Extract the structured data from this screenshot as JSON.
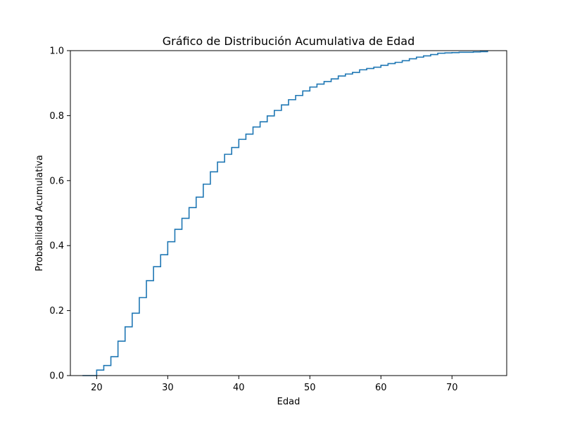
{
  "chart_data": {
    "type": "line",
    "step": true,
    "title": "Gráfico de Distribución Acumulativa de Edad",
    "xlabel": "Edad",
    "ylabel": "Probabilidad Acumulativa",
    "xlim": [
      16.3,
      77.7
    ],
    "ylim": [
      0,
      1
    ],
    "x_ticks": [
      20,
      30,
      40,
      50,
      60,
      70
    ],
    "y_ticks": [
      0.0,
      0.2,
      0.4,
      0.6,
      0.8,
      1.0
    ],
    "x_tick_labels": [
      "20",
      "30",
      "40",
      "50",
      "60",
      "70"
    ],
    "y_tick_labels": [
      "0.0",
      "0.2",
      "0.4",
      "0.6",
      "0.8",
      "1.0"
    ],
    "grid": false,
    "line_color": "#1f77b4",
    "series": [
      {
        "x": [
          19,
          20,
          21,
          22,
          23,
          24,
          25,
          26,
          27,
          28,
          29,
          30,
          31,
          32,
          33,
          34,
          35,
          36,
          37,
          38,
          39,
          40,
          41,
          42,
          43,
          44,
          45,
          46,
          47,
          48,
          49,
          50,
          51,
          52,
          53,
          54,
          55,
          56,
          57,
          58,
          59,
          60,
          61,
          62,
          63,
          64,
          65,
          66,
          67,
          68,
          69,
          70,
          71,
          72,
          73,
          74,
          75
        ],
        "y": [
          0.0,
          0.017,
          0.031,
          0.058,
          0.106,
          0.15,
          0.192,
          0.24,
          0.292,
          0.335,
          0.372,
          0.412,
          0.45,
          0.484,
          0.517,
          0.549,
          0.589,
          0.627,
          0.657,
          0.681,
          0.702,
          0.727,
          0.743,
          0.765,
          0.781,
          0.799,
          0.816,
          0.833,
          0.849,
          0.862,
          0.876,
          0.888,
          0.897,
          0.905,
          0.913,
          0.922,
          0.928,
          0.933,
          0.941,
          0.945,
          0.949,
          0.955,
          0.96,
          0.964,
          0.969,
          0.975,
          0.98,
          0.984,
          0.988,
          0.992,
          0.993,
          0.994,
          0.995,
          0.995,
          0.996,
          0.997,
          1.0
        ]
      }
    ]
  }
}
